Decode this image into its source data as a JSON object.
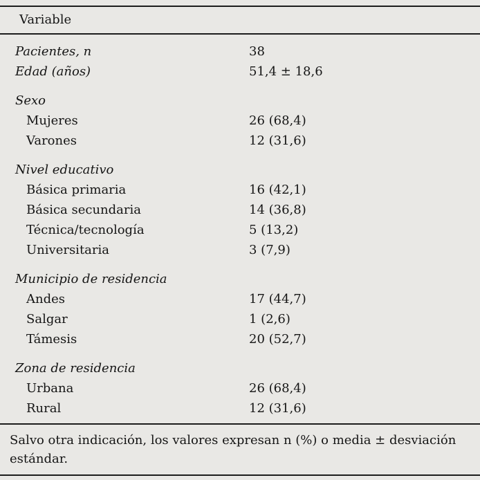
{
  "table": {
    "header": "Variable",
    "rows": [
      {
        "label": "Pacientes, n",
        "value": "38"
      },
      {
        "label": "Edad (años)",
        "value": "51,4 ± 18,6"
      },
      {
        "label": "Sexo",
        "value": ""
      },
      {
        "label": "Mujeres",
        "value": "26 (68,4)"
      },
      {
        "label": "Varones",
        "value": "12 (31,6)"
      },
      {
        "label": "Nivel educativo",
        "value": ""
      },
      {
        "label": "Básica primaria",
        "value": "16 (42,1)"
      },
      {
        "label": "Básica secundaria",
        "value": "14 (36,8)"
      },
      {
        "label": "Técnica/tecnología",
        "value": "5 (13,2)"
      },
      {
        "label": "Universitaria",
        "value": "3 (7,9)"
      },
      {
        "label": "Municipio de residencia",
        "value": ""
      },
      {
        "label": "Andes",
        "value": "17 (44,7)"
      },
      {
        "label": "Salgar",
        "value": "1 (2,6)"
      },
      {
        "label": "Támesis",
        "value": "20 (52,7)"
      },
      {
        "label": "Zona de residencia",
        "value": ""
      },
      {
        "label": "Urbana",
        "value": "26 (68,4)"
      },
      {
        "label": "Rural",
        "value": "12 (31,6)"
      }
    ],
    "footnote": "Salvo otra indicación, los valores expresan n (%) o media ± desviación estándar."
  }
}
